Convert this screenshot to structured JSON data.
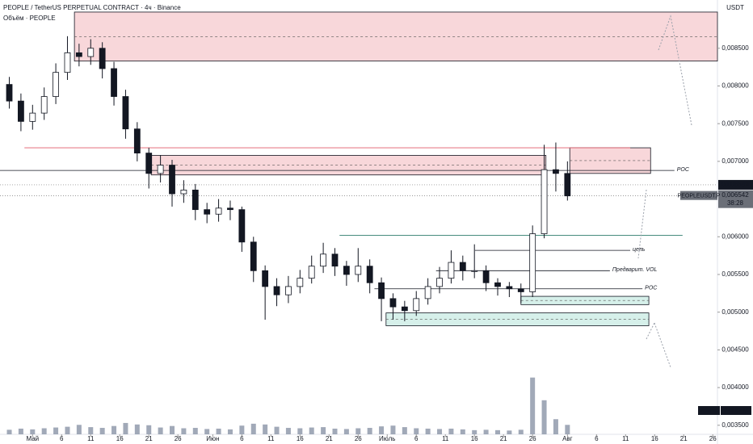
{
  "chart_data": {
    "type": "candlestick",
    "title": "PEOPLE / TetherUS PERPETUAL CONTRACT · 4ч · Binance",
    "subtitle": "Объём · PEOPLE",
    "currency": "USDT",
    "x": [
      -4,
      -2,
      0,
      2,
      4,
      6,
      8,
      10,
      12,
      14,
      16,
      18,
      20,
      22,
      24,
      26,
      28,
      30,
      32,
      34,
      36,
      38,
      40,
      42,
      44,
      46,
      48,
      50,
      52,
      54,
      56,
      58,
      60,
      62,
      64,
      66,
      68,
      70,
      72,
      74,
      76,
      78,
      80,
      82,
      84,
      86,
      88,
      90,
      92
    ],
    "open": [
      0.00802,
      0.0078,
      0.00753,
      0.00764,
      0.00786,
      0.00818,
      0.00844,
      0.00839,
      0.0085,
      0.00823,
      0.00786,
      0.00743,
      0.00711,
      0.00684,
      0.00695,
      0.00657,
      0.00662,
      0.00636,
      0.0063,
      0.00638,
      0.00636,
      0.00593,
      0.00555,
      0.00534,
      0.00523,
      0.00534,
      0.00545,
      0.00561,
      0.00577,
      0.00561,
      0.0055,
      0.00561,
      0.00539,
      0.00518,
      0.00507,
      0.00502,
      0.00518,
      0.00534,
      0.00545,
      0.00566,
      0.00555,
      0.00555,
      0.00539,
      0.00534,
      0.00531,
      0.00527,
      0.00604,
      0.00689,
      0.00684
    ],
    "high": [
      0.00812,
      0.0079,
      0.00775,
      0.00798,
      0.0083,
      0.00866,
      0.00856,
      0.00862,
      0.00858,
      0.00832,
      0.00795,
      0.00752,
      0.00718,
      0.00708,
      0.00702,
      0.00675,
      0.0067,
      0.00645,
      0.0065,
      0.00648,
      0.0064,
      0.006,
      0.00562,
      0.00545,
      0.00548,
      0.00556,
      0.00575,
      0.00592,
      0.00585,
      0.00568,
      0.00585,
      0.0057,
      0.00546,
      0.00525,
      0.00515,
      0.00528,
      0.00545,
      0.0056,
      0.00582,
      0.00575,
      0.0059,
      0.00562,
      0.00545,
      0.0054,
      0.00538,
      0.00615,
      0.00722,
      0.00725,
      0.007
    ],
    "low": [
      0.0077,
      0.0074,
      0.00742,
      0.00755,
      0.00776,
      0.00808,
      0.00826,
      0.00828,
      0.0081,
      0.00774,
      0.0073,
      0.007,
      0.00664,
      0.00672,
      0.0064,
      0.00645,
      0.00622,
      0.00618,
      0.0062,
      0.00622,
      0.0058,
      0.0054,
      0.0049,
      0.00508,
      0.00512,
      0.00525,
      0.00538,
      0.00552,
      0.00548,
      0.00535,
      0.0054,
      0.00525,
      0.00488,
      0.0049,
      0.00488,
      0.00495,
      0.0051,
      0.00525,
      0.00538,
      0.00542,
      0.00545,
      0.00528,
      0.00522,
      0.0052,
      0.00512,
      0.0052,
      0.00598,
      0.0066,
      0.00648
    ],
    "close": [
      0.0078,
      0.00753,
      0.00764,
      0.00786,
      0.00818,
      0.00844,
      0.00839,
      0.0085,
      0.00823,
      0.00786,
      0.00743,
      0.00711,
      0.00684,
      0.00695,
      0.00657,
      0.00662,
      0.00636,
      0.0063,
      0.00638,
      0.00636,
      0.00593,
      0.00555,
      0.00534,
      0.00523,
      0.00534,
      0.00545,
      0.00561,
      0.00577,
      0.00561,
      0.0055,
      0.00561,
      0.00539,
      0.00518,
      0.00507,
      0.00502,
      0.00518,
      0.00534,
      0.00545,
      0.00566,
      0.00555,
      0.00555,
      0.00539,
      0.00534,
      0.00531,
      0.00527,
      0.00604,
      0.00689,
      0.00684,
      0.006542
    ],
    "up_color": "#ffffff",
    "down_color": "#131722",
    "volume": {
      "name": "Volume",
      "color": "#8a93a6",
      "last_label": "249,62 M",
      "values": [
        120,
        150,
        130,
        160,
        180,
        200,
        250,
        190,
        170,
        220,
        300,
        260,
        240,
        180,
        220,
        160,
        170,
        140,
        150,
        130,
        230,
        280,
        260,
        200,
        170,
        160,
        180,
        190,
        150,
        140,
        160,
        170,
        210,
        230,
        190,
        160,
        150,
        140,
        150,
        130,
        110,
        120,
        110,
        100,
        120,
        1500,
        900,
        400,
        249.62
      ]
    },
    "volume_lim": [
      0,
      1600
    ],
    "ylim": [
      0.00338,
      0.00914
    ],
    "yticks": [
      {
        "value": 0.0085,
        "label": "0,008500"
      },
      {
        "value": 0.008,
        "label": "0,008000"
      },
      {
        "value": 0.0075,
        "label": "0,007500"
      },
      {
        "value": 0.007,
        "label": "0,007000"
      },
      {
        "value": 0.006,
        "label": "0,006000"
      },
      {
        "value": 0.0055,
        "label": "0,005500"
      },
      {
        "value": 0.005,
        "label": "0,005000"
      },
      {
        "value": 0.0045,
        "label": "0,004500"
      },
      {
        "value": 0.004,
        "label": "0,004000"
      },
      {
        "value": 0.0035,
        "label": "0,003500"
      }
    ],
    "xlim": [
      -5.6,
      117.8
    ],
    "xticks": [
      {
        "value": 0,
        "label": "Май"
      },
      {
        "value": 5,
        "label": "6"
      },
      {
        "value": 10,
        "label": "11"
      },
      {
        "value": 15,
        "label": "16"
      },
      {
        "value": 20,
        "label": "21"
      },
      {
        "value": 25,
        "label": "26"
      },
      {
        "value": 31,
        "label": "Июн"
      },
      {
        "value": 36,
        "label": "6"
      },
      {
        "value": 41,
        "label": "11"
      },
      {
        "value": 46,
        "label": "16"
      },
      {
        "value": 51,
        "label": "21"
      },
      {
        "value": 56,
        "label": "26"
      },
      {
        "value": 61,
        "label": "Июль"
      },
      {
        "value": 66,
        "label": "6"
      },
      {
        "value": 71,
        "label": "11"
      },
      {
        "value": 76,
        "label": "16"
      },
      {
        "value": 81,
        "label": "21"
      },
      {
        "value": 86,
        "label": "26"
      },
      {
        "value": 92,
        "label": "Авг"
      },
      {
        "value": 97,
        "label": "6"
      },
      {
        "value": 102,
        "label": "11"
      },
      {
        "value": 107,
        "label": "16"
      },
      {
        "value": 112,
        "label": "21"
      },
      {
        "value": 117,
        "label": "26"
      }
    ],
    "price_labels": [
      {
        "value": 0.006689,
        "label": "0,006689"
      },
      {
        "value": 0.006542,
        "label": "0,006542"
      }
    ],
    "symbol_tag": "PEOPLEUSDT.P",
    "countdown": "38:28",
    "zones": [
      {
        "top": 0.00898,
        "bottom": 0.00833,
        "from": 7.2,
        "to": 117.8,
        "color": "#f8d7da"
      },
      {
        "top": 0.00708,
        "bottom": 0.00682,
        "from": 20.4,
        "to": 88.3,
        "color": "#f8d7da"
      },
      {
        "top": 0.00718,
        "bottom": 0.00684,
        "from": 92.4,
        "to": 106.3,
        "color": "#f8d7da"
      },
      {
        "top": 0.00521,
        "bottom": 0.0051,
        "from": 84,
        "to": 106,
        "color": "#d6f0ea"
      },
      {
        "top": 0.00499,
        "bottom": 0.00482,
        "from": 60.8,
        "to": 106,
        "color": "#d6f0ea"
      }
    ],
    "levels": [
      {
        "price": 0.00718,
        "from": -1.4,
        "to": 102.8,
        "color": "#e05a6a"
      },
      {
        "price": 0.00688,
        "from": -5.6,
        "to": 110.4,
        "color": "#131722",
        "label": "POC"
      },
      {
        "price": 0.00602,
        "from": 52.8,
        "to": 111.8,
        "color": "#2e7d6b"
      },
      {
        "price": 0.00582,
        "from": 76.1,
        "to": 102.8,
        "color": "#131722",
        "label": "цель"
      },
      {
        "price": 0.00555,
        "from": 69.4,
        "to": 99.3,
        "color": "#131722",
        "label": "Предварит. VOL"
      },
      {
        "price": 0.00531,
        "from": 58.8,
        "to": 104.9,
        "color": "#131722",
        "label": "POC"
      }
    ],
    "grid": false
  }
}
